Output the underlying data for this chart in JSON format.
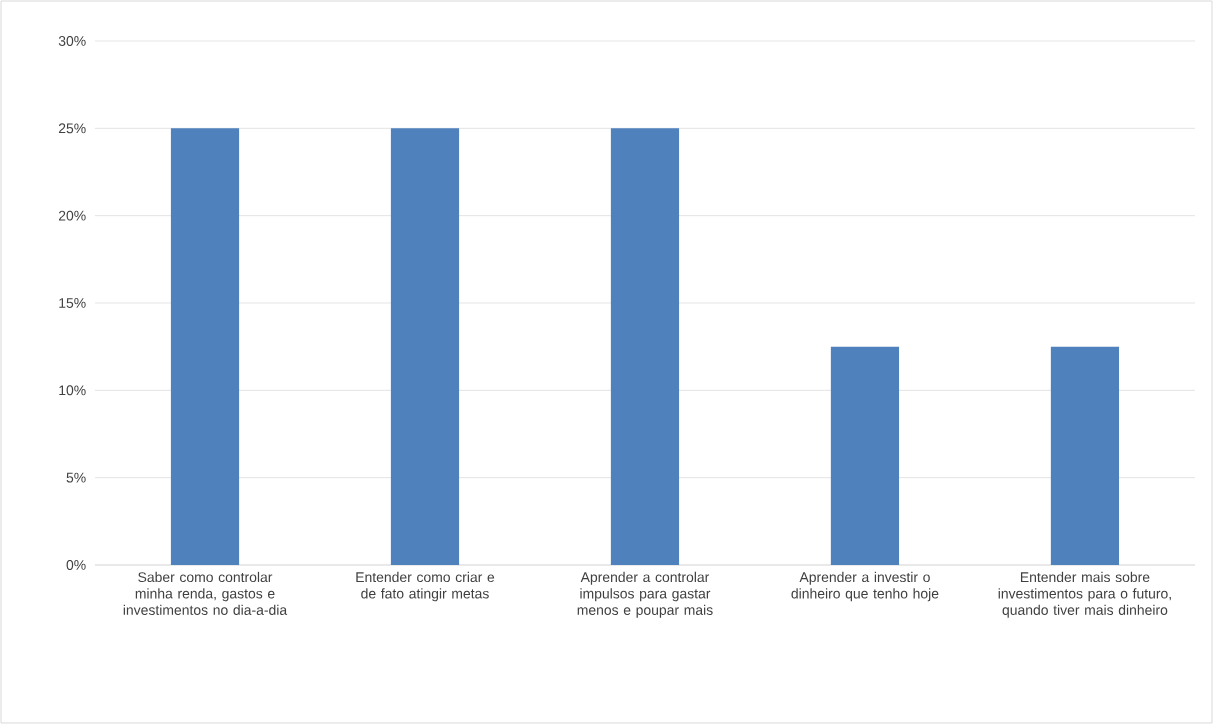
{
  "chart_data": {
    "type": "bar",
    "categories": [
      "Saber como controlar minha renda, gastos e investimentos no dia-a-dia",
      "Entender como criar e de fato atingir metas",
      "Aprender a controlar impulsos para gastar menos e poupar mais",
      "Aprender a investir o dinheiro que tenho hoje",
      "Entender mais sobre investimentos para o futuro, quando tiver mais dinheiro"
    ],
    "values": [
      25,
      25,
      25,
      12.5,
      12.5
    ],
    "color": "#4f81bd",
    "ylim": [
      0,
      30
    ],
    "yticks": [
      {
        "value": 0,
        "label": "0%"
      },
      {
        "value": 5,
        "label": "5%"
      },
      {
        "value": 10,
        "label": "10%"
      },
      {
        "value": 15,
        "label": "15%"
      },
      {
        "value": 20,
        "label": "20%"
      },
      {
        "value": 25,
        "label": "25%"
      },
      {
        "value": 30,
        "label": "30%"
      }
    ],
    "grid": "y"
  }
}
